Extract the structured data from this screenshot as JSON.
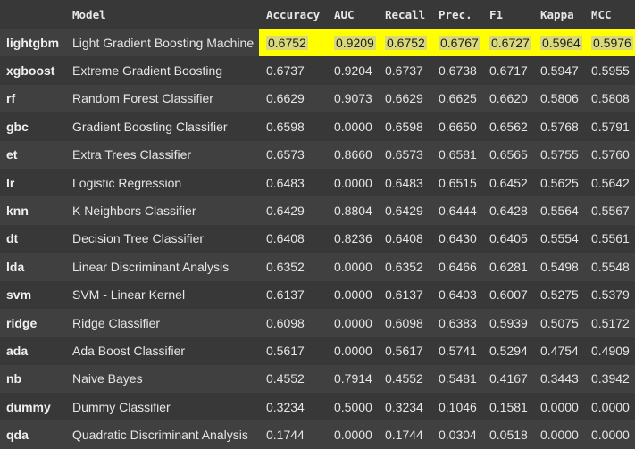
{
  "columns": [
    "",
    "Model",
    "Accuracy",
    "AUC",
    "Recall",
    "Prec.",
    "F1",
    "Kappa",
    "MCC"
  ],
  "highlight_color": "#ffff00",
  "rows": [
    {
      "id": "lightgbm",
      "model": "Light Gradient Boosting Machine",
      "accuracy": "0.6752",
      "auc": "0.9209",
      "recall": "0.6752",
      "prec": "0.6767",
      "f1": "0.6727",
      "kappa": "0.5964",
      "mcc": "0.5976"
    },
    {
      "id": "xgboost",
      "model": "Extreme Gradient Boosting",
      "accuracy": "0.6737",
      "auc": "0.9204",
      "recall": "0.6737",
      "prec": "0.6738",
      "f1": "0.6717",
      "kappa": "0.5947",
      "mcc": "0.5955"
    },
    {
      "id": "rf",
      "model": "Random Forest Classifier",
      "accuracy": "0.6629",
      "auc": "0.9073",
      "recall": "0.6629",
      "prec": "0.6625",
      "f1": "0.6620",
      "kappa": "0.5806",
      "mcc": "0.5808"
    },
    {
      "id": "gbc",
      "model": "Gradient Boosting Classifier",
      "accuracy": "0.6598",
      "auc": "0.0000",
      "recall": "0.6598",
      "prec": "0.6650",
      "f1": "0.6562",
      "kappa": "0.5768",
      "mcc": "0.5791"
    },
    {
      "id": "et",
      "model": "Extra Trees Classifier",
      "accuracy": "0.6573",
      "auc": "0.8660",
      "recall": "0.6573",
      "prec": "0.6581",
      "f1": "0.6565",
      "kappa": "0.5755",
      "mcc": "0.5760"
    },
    {
      "id": "lr",
      "model": "Logistic Regression",
      "accuracy": "0.6483",
      "auc": "0.0000",
      "recall": "0.6483",
      "prec": "0.6515",
      "f1": "0.6452",
      "kappa": "0.5625",
      "mcc": "0.5642"
    },
    {
      "id": "knn",
      "model": "K Neighbors Classifier",
      "accuracy": "0.6429",
      "auc": "0.8804",
      "recall": "0.6429",
      "prec": "0.6444",
      "f1": "0.6428",
      "kappa": "0.5564",
      "mcc": "0.5567"
    },
    {
      "id": "dt",
      "model": "Decision Tree Classifier",
      "accuracy": "0.6408",
      "auc": "0.8236",
      "recall": "0.6408",
      "prec": "0.6430",
      "f1": "0.6405",
      "kappa": "0.5554",
      "mcc": "0.5561"
    },
    {
      "id": "lda",
      "model": "Linear Discriminant Analysis",
      "accuracy": "0.6352",
      "auc": "0.0000",
      "recall": "0.6352",
      "prec": "0.6466",
      "f1": "0.6281",
      "kappa": "0.5498",
      "mcc": "0.5548"
    },
    {
      "id": "svm",
      "model": "SVM - Linear Kernel",
      "accuracy": "0.6137",
      "auc": "0.0000",
      "recall": "0.6137",
      "prec": "0.6403",
      "f1": "0.6007",
      "kappa": "0.5275",
      "mcc": "0.5379"
    },
    {
      "id": "ridge",
      "model": "Ridge Classifier",
      "accuracy": "0.6098",
      "auc": "0.0000",
      "recall": "0.6098",
      "prec": "0.6383",
      "f1": "0.5939",
      "kappa": "0.5075",
      "mcc": "0.5172"
    },
    {
      "id": "ada",
      "model": "Ada Boost Classifier",
      "accuracy": "0.5617",
      "auc": "0.0000",
      "recall": "0.5617",
      "prec": "0.5741",
      "f1": "0.5294",
      "kappa": "0.4754",
      "mcc": "0.4909"
    },
    {
      "id": "nb",
      "model": "Naive Bayes",
      "accuracy": "0.4552",
      "auc": "0.7914",
      "recall": "0.4552",
      "prec": "0.5481",
      "f1": "0.4167",
      "kappa": "0.3443",
      "mcc": "0.3942"
    },
    {
      "id": "dummy",
      "model": "Dummy Classifier",
      "accuracy": "0.3234",
      "auc": "0.5000",
      "recall": "0.3234",
      "prec": "0.1046",
      "f1": "0.1581",
      "kappa": "0.0000",
      "mcc": "0.0000"
    },
    {
      "id": "qda",
      "model": "Quadratic Discriminant Analysis",
      "accuracy": "0.1744",
      "auc": "0.0000",
      "recall": "0.1744",
      "prec": "0.0304",
      "f1": "0.0518",
      "kappa": "0.0000",
      "mcc": "0.0000"
    }
  ]
}
